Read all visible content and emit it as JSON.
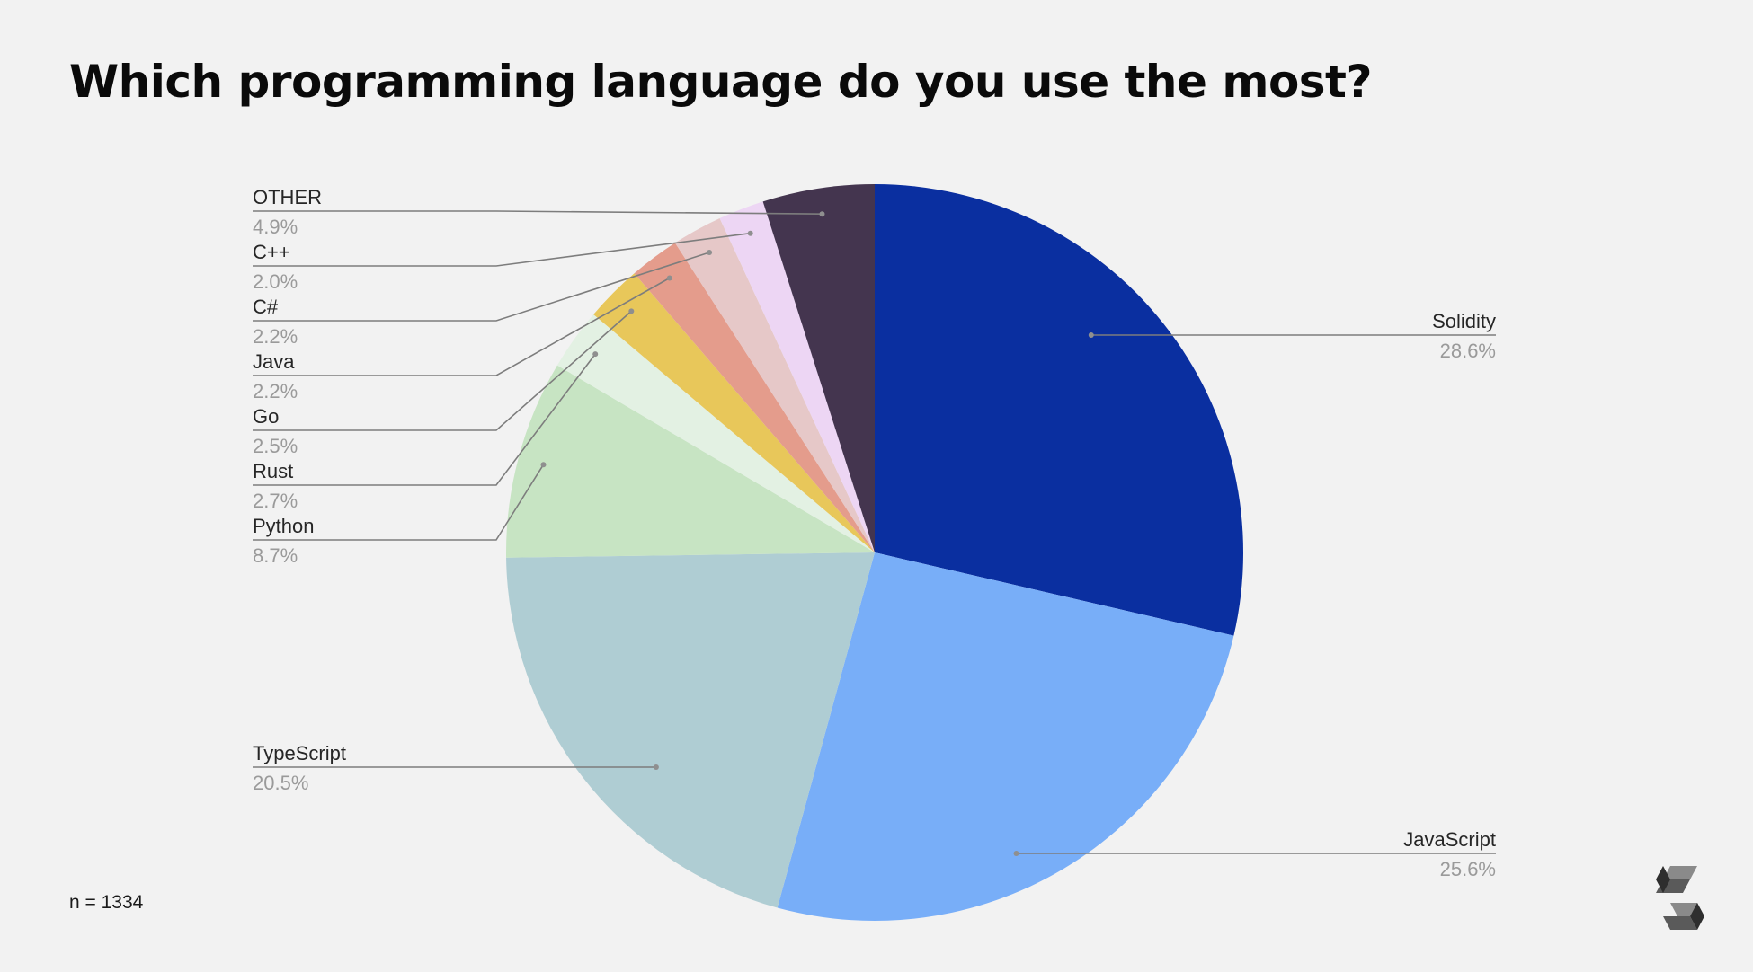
{
  "title": "Which programming language do you use the most?",
  "footer": {
    "sample_size": "n = 1334"
  },
  "logo": {
    "icon": "solidity-logo-icon"
  },
  "chart_data": {
    "type": "pie",
    "title": "Which programming language do you use the most?",
    "start_angle_deg": 0,
    "direction": "clockwise",
    "slices": [
      {
        "label": "Solidity",
        "value": 28.6,
        "display": "28.6%",
        "color": "#0a2fa0"
      },
      {
        "label": "JavaScript",
        "value": 25.6,
        "display": "25.6%",
        "color": "#78aef8"
      },
      {
        "label": "TypeScript",
        "value": 20.5,
        "display": "20.5%",
        "color": "#afcdd3"
      },
      {
        "label": "Python",
        "value": 8.7,
        "display": "8.7%",
        "color": "#c7e4c3"
      },
      {
        "label": "Rust",
        "value": 2.7,
        "display": "2.7%",
        "color": "#e3f1e3"
      },
      {
        "label": "Go",
        "value": 2.5,
        "display": "2.5%",
        "color": "#e8c75a"
      },
      {
        "label": "Java",
        "value": 2.2,
        "display": "2.2%",
        "color": "#e49c8c"
      },
      {
        "label": "C#",
        "value": 2.2,
        "display": "2.2%",
        "color": "#e6c8c8"
      },
      {
        "label": "C++",
        "value": 2.0,
        "display": "2.0%",
        "color": "#edd6f4"
      },
      {
        "label": "OTHER",
        "value": 4.9,
        "display": "4.9%",
        "color": "#44354f"
      }
    ]
  }
}
